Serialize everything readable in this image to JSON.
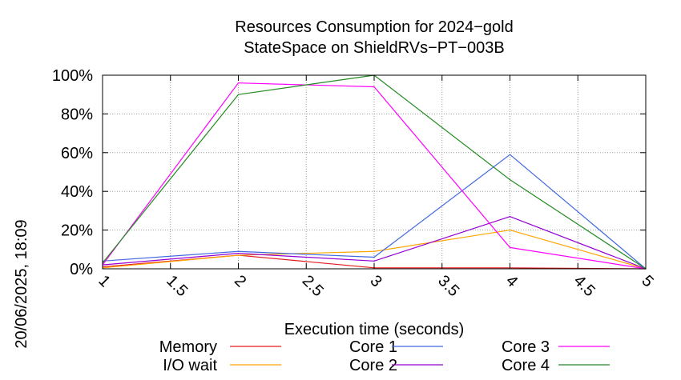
{
  "chart_data": {
    "type": "line",
    "title": "Resources Consumption for 2024−gold",
    "subtitle": "StateSpace on ShieldRVs−PT−003B",
    "xlabel": "Execution time (seconds)",
    "ylabel": "",
    "side_label": "20/06/2025, 18:09",
    "xlim": [
      1,
      5
    ],
    "ylim": [
      0,
      100
    ],
    "x_ticks": [
      "1",
      "1.5",
      "2",
      "2.5",
      "3",
      "3.5",
      "4",
      "4.5",
      "5"
    ],
    "y_ticks": [
      "0%",
      "20%",
      "40%",
      "60%",
      "80%",
      "100%"
    ],
    "grid": true,
    "legend_position": "bottom",
    "x": [
      1,
      2,
      3,
      4,
      5
    ],
    "series": [
      {
        "name": "Memory",
        "color": "#e41a1c",
        "values": [
          1,
          7,
          0.5,
          0.5,
          0
        ]
      },
      {
        "name": "I/O wait",
        "color": "#ffa500",
        "values": [
          0.5,
          7,
          9,
          20,
          0
        ]
      },
      {
        "name": "Core 1",
        "color": "#4169e1",
        "values": [
          4,
          9,
          6,
          59,
          0
        ]
      },
      {
        "name": "Core 2",
        "color": "#9400d3",
        "values": [
          2,
          8,
          4,
          27,
          0
        ]
      },
      {
        "name": "Core 3",
        "color": "#ff00ff",
        "values": [
          2,
          96,
          94,
          11,
          0
        ]
      },
      {
        "name": "Core 4",
        "color": "#228b22",
        "values": [
          3,
          90,
          100,
          46,
          0
        ]
      }
    ]
  }
}
